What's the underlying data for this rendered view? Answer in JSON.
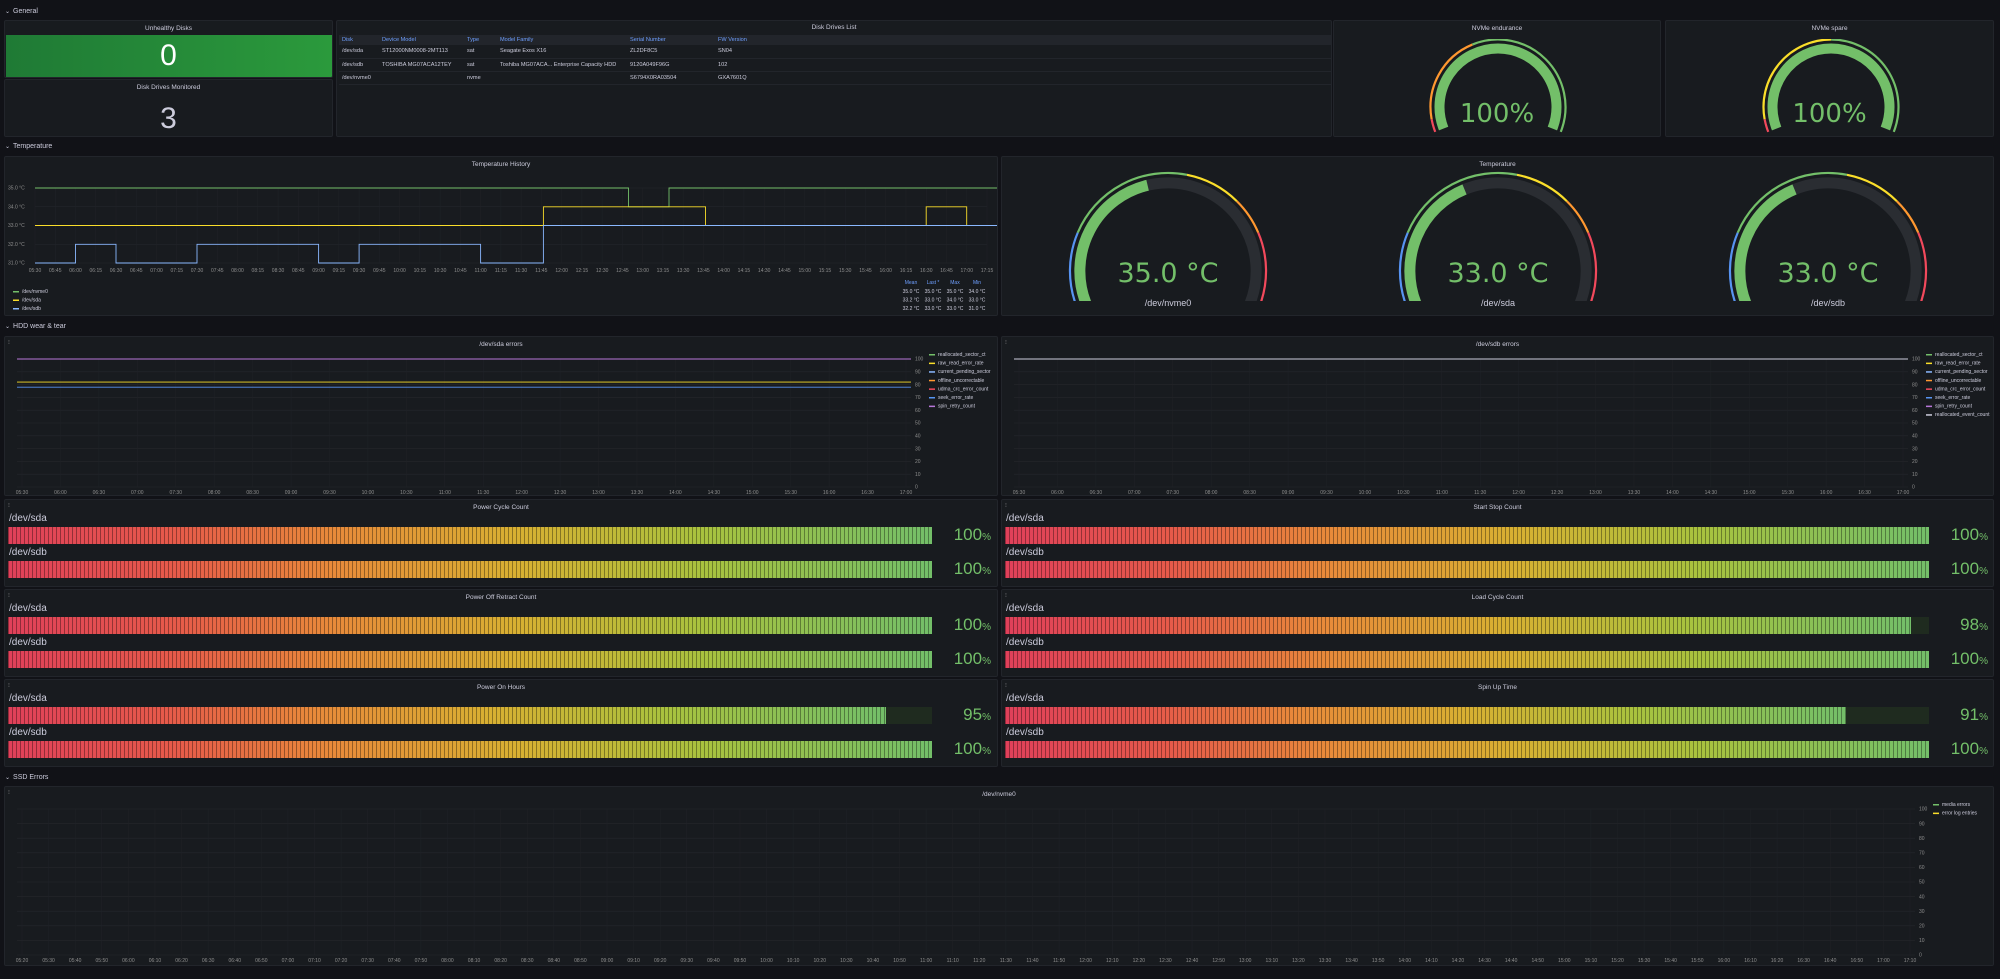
{
  "rows": {
    "general": "General",
    "temperature": "Temperature",
    "hdd": "HDD wear & tear",
    "ssd": "SSD Errors"
  },
  "stats": {
    "unhealthy_title": "Unhealthy Disks",
    "unhealthy_value": "0",
    "monitored_title": "Disk Drives Monitored",
    "monitored_value": "3"
  },
  "disk_table": {
    "title": "Disk Drives List",
    "headers": [
      "Disk",
      "Device Model",
      "Type",
      "Model Family",
      "Serial Number",
      "FW Version"
    ],
    "rows": [
      [
        "/dev/sda",
        "ST12000NM0008-2MT113",
        "sat",
        "Seagate Exos X16",
        "ZL2DF8C5",
        "SN04"
      ],
      [
        "/dev/sdb",
        "TOSHIBA MG07ACA12TEY",
        "sat",
        "Toshiba MG07ACA... Enterprise Capacity HDD",
        "9120A049F96G",
        "102"
      ],
      [
        "/dev/nvme0",
        "",
        "nvme",
        "",
        "S6794X0RA03504",
        "GXA7601Q"
      ]
    ]
  },
  "nvme_gauges": [
    {
      "title": "NVMe endurance",
      "value": "100%",
      "fraction": 1.0
    },
    {
      "title": "NVMe spare",
      "value": "100%",
      "fraction": 1.0
    }
  ],
  "temp_history": {
    "title": "Temperature History",
    "yticks": [
      "35.0 °C",
      "34.0 °C",
      "33.0 °C",
      "32.0 °C",
      "31.0 °C"
    ],
    "xticks": [
      "05:30",
      "05:45",
      "06:00",
      "06:15",
      "06:30",
      "06:45",
      "07:00",
      "07:15",
      "07:30",
      "07:45",
      "08:00",
      "08:15",
      "08:30",
      "08:45",
      "09:00",
      "09:15",
      "09:30",
      "09:45",
      "10:00",
      "10:15",
      "10:30",
      "10:45",
      "11:00",
      "11:15",
      "11:30",
      "11:45",
      "12:00",
      "12:15",
      "12:30",
      "12:45",
      "13:00",
      "13:15",
      "13:30",
      "13:45",
      "14:00",
      "14:15",
      "14:30",
      "14:45",
      "15:00",
      "15:15",
      "15:30",
      "15:45",
      "16:00",
      "16:15",
      "16:30",
      "16:45",
      "17:00",
      "17:15"
    ],
    "legend_headers": [
      "Mean",
      "Last *",
      "Max",
      "Min"
    ],
    "legend": [
      {
        "name": "/dev/nvme0",
        "color": "#73bf69",
        "mean": "35.0 °C",
        "last": "35.0 °C",
        "max": "35.0 °C",
        "min": "34.0 °C"
      },
      {
        "name": "/dev/sda",
        "color": "#fade2a",
        "mean": "33.2 °C",
        "last": "33.0 °C",
        "max": "34.0 °C",
        "min": "33.0 °C"
      },
      {
        "name": "/dev/sdb",
        "color": "#8ab8ff",
        "mean": "32.2 °C",
        "last": "33.0 °C",
        "max": "33.0 °C",
        "min": "31.0 °C"
      }
    ]
  },
  "temperature_gauges": {
    "title": "Temperature",
    "items": [
      {
        "value": "35.0 °C",
        "label": "/dev/nvme0",
        "fraction": 0.44
      },
      {
        "value": "33.0 °C",
        "label": "/dev/sda",
        "fraction": 0.4
      },
      {
        "value": "33.0 °C",
        "label": "/dev/sdb",
        "fraction": 0.4
      }
    ]
  },
  "sda_errors": {
    "title": "/dev/sda errors",
    "yticks": [
      "100",
      "90",
      "80",
      "70",
      "60",
      "50",
      "40",
      "30",
      "20",
      "10",
      "0"
    ],
    "xticks": [
      "05:30",
      "06:00",
      "06:30",
      "07:00",
      "07:30",
      "08:00",
      "08:30",
      "09:00",
      "09:30",
      "10:00",
      "10:30",
      "11:00",
      "11:30",
      "12:00",
      "12:30",
      "13:00",
      "13:30",
      "14:00",
      "14:30",
      "15:00",
      "15:30",
      "16:00",
      "16:30",
      "17:00"
    ],
    "legend": [
      {
        "name": "reallocated_sector_ct",
        "color": "#73bf69"
      },
      {
        "name": "raw_read_error_rate",
        "color": "#fade2a"
      },
      {
        "name": "current_pending_sector",
        "color": "#8ab8ff"
      },
      {
        "name": "offline_uncorrectable",
        "color": "#ff9830"
      },
      {
        "name": "udma_crc_error_count",
        "color": "#f2495c"
      },
      {
        "name": "seek_error_rate",
        "color": "#5794f2"
      },
      {
        "name": "spin_retry_count",
        "color": "#b877d9"
      }
    ]
  },
  "sdb_errors": {
    "title": "/dev/sdb errors",
    "yticks": [
      "100",
      "90",
      "80",
      "70",
      "60",
      "50",
      "40",
      "30",
      "20",
      "10",
      "0"
    ],
    "xticks": [
      "05:30",
      "06:00",
      "06:30",
      "07:00",
      "07:30",
      "08:00",
      "08:30",
      "09:00",
      "09:30",
      "10:00",
      "10:30",
      "11:00",
      "11:30",
      "12:00",
      "12:30",
      "13:00",
      "13:30",
      "14:00",
      "14:30",
      "15:00",
      "15:30",
      "16:00",
      "16:30",
      "17:00"
    ],
    "legend": [
      {
        "name": "reallocated_sector_ct",
        "color": "#73bf69"
      },
      {
        "name": "raw_read_error_rate",
        "color": "#fade2a"
      },
      {
        "name": "current_pending_sector",
        "color": "#8ab8ff"
      },
      {
        "name": "offline_uncorrectable",
        "color": "#ff9830"
      },
      {
        "name": "udma_crc_error_count",
        "color": "#f2495c"
      },
      {
        "name": "seek_error_rate",
        "color": "#5794f2"
      },
      {
        "name": "spin_retry_count",
        "color": "#b877d9"
      },
      {
        "name": "reallocated_event_count",
        "color": "#ccccdc"
      }
    ]
  },
  "bargauges": [
    {
      "title": "Power Cycle Count",
      "bars": [
        {
          "name": "/dev/sda",
          "value": "100",
          "unit": "%",
          "fraction": 1.0
        },
        {
          "name": "/dev/sdb",
          "value": "100",
          "unit": "%",
          "fraction": 1.0
        }
      ]
    },
    {
      "title": "Start Stop Count",
      "bars": [
        {
          "name": "/dev/sda",
          "value": "100",
          "unit": "%",
          "fraction": 1.0
        },
        {
          "name": "/dev/sdb",
          "value": "100",
          "unit": "%",
          "fraction": 1.0
        }
      ]
    },
    {
      "title": "Power Off Retract Count",
      "bars": [
        {
          "name": "/dev/sda",
          "value": "100",
          "unit": "%",
          "fraction": 1.0
        },
        {
          "name": "/dev/sdb",
          "value": "100",
          "unit": "%",
          "fraction": 1.0
        }
      ]
    },
    {
      "title": "Load Cycle Count",
      "bars": [
        {
          "name": "/dev/sda",
          "value": "98",
          "unit": "%",
          "fraction": 0.98
        },
        {
          "name": "/dev/sdb",
          "value": "100",
          "unit": "%",
          "fraction": 1.0
        }
      ]
    },
    {
      "title": "Power On Hours",
      "bars": [
        {
          "name": "/dev/sda",
          "value": "95",
          "unit": "%",
          "fraction": 0.95
        },
        {
          "name": "/dev/sdb",
          "value": "100",
          "unit": "%",
          "fraction": 1.0
        }
      ]
    },
    {
      "title": "Spin Up Time",
      "bars": [
        {
          "name": "/dev/sda",
          "value": "91",
          "unit": "%",
          "fraction": 0.91
        },
        {
          "name": "/dev/sdb",
          "value": "100",
          "unit": "%",
          "fraction": 1.0
        }
      ]
    }
  ],
  "nvme_errors": {
    "title": "/dev/nvme0",
    "yticks": [
      "100",
      "90",
      "80",
      "70",
      "60",
      "50",
      "40",
      "30",
      "20",
      "10",
      "0"
    ],
    "xticks": [
      "05:20",
      "05:30",
      "05:40",
      "05:50",
      "06:00",
      "06:10",
      "06:20",
      "06:30",
      "06:40",
      "06:50",
      "07:00",
      "07:10",
      "07:20",
      "07:30",
      "07:40",
      "07:50",
      "08:00",
      "08:10",
      "08:20",
      "08:30",
      "08:40",
      "08:50",
      "09:00",
      "09:10",
      "09:20",
      "09:30",
      "09:40",
      "09:50",
      "10:00",
      "10:10",
      "10:20",
      "10:30",
      "10:40",
      "10:50",
      "11:00",
      "11:10",
      "11:20",
      "11:30",
      "11:40",
      "11:50",
      "12:00",
      "12:10",
      "12:20",
      "12:30",
      "12:40",
      "12:50",
      "13:00",
      "13:10",
      "13:20",
      "13:30",
      "13:40",
      "13:50",
      "14:00",
      "14:10",
      "14:20",
      "14:30",
      "14:40",
      "14:50",
      "15:00",
      "15:10",
      "15:20",
      "15:30",
      "15:40",
      "15:50",
      "16:00",
      "16:10",
      "16:20",
      "16:30",
      "16:40",
      "16:50",
      "17:00",
      "17:10"
    ],
    "legend": [
      {
        "name": "media errors",
        "color": "#73bf69"
      },
      {
        "name": "error log entries",
        "color": "#fade2a"
      }
    ]
  },
  "chart_data": [
    {
      "type": "line",
      "title": "Temperature History",
      "xlabel": "",
      "ylabel": "",
      "ylim": [
        31,
        35
      ],
      "x": [
        "05:30",
        "06:30",
        "07:30",
        "08:30",
        "09:30",
        "10:30",
        "11:30",
        "12:30",
        "13:00",
        "13:30",
        "14:30",
        "15:30",
        "16:30",
        "16:45",
        "17:00",
        "17:15"
      ],
      "series": [
        {
          "name": "/dev/nvme0",
          "values": [
            35,
            35,
            35,
            35,
            35,
            35,
            35,
            35,
            34,
            35,
            35,
            35,
            35,
            35,
            35,
            35
          ]
        },
        {
          "name": "/dev/sda",
          "values": [
            33,
            33,
            33,
            33,
            33,
            33,
            34,
            34,
            34,
            33,
            33,
            33,
            33,
            34,
            33,
            33
          ]
        },
        {
          "name": "/dev/sdb",
          "values": [
            31,
            32,
            31,
            32,
            32,
            31,
            33,
            33,
            33,
            33,
            33,
            33,
            33,
            33,
            33,
            33
          ]
        }
      ]
    },
    {
      "type": "line",
      "title": "/dev/sda errors",
      "ylim": [
        0,
        100
      ],
      "x": [
        "05:30",
        "17:00"
      ],
      "series": [
        {
          "name": "reallocated_sector_ct",
          "values": [
            100,
            100
          ]
        },
        {
          "name": "raw_read_error_rate",
          "values": [
            82,
            82
          ]
        },
        {
          "name": "seek_error_rate",
          "values": [
            78,
            78
          ]
        },
        {
          "name": "current_pending_sector",
          "values": [
            100,
            100
          ]
        },
        {
          "name": "offline_uncorrectable",
          "values": [
            100,
            100
          ]
        },
        {
          "name": "udma_crc_error_count",
          "values": [
            100,
            100
          ]
        },
        {
          "name": "spin_retry_count",
          "values": [
            100,
            100
          ]
        }
      ]
    },
    {
      "type": "line",
      "title": "/dev/sdb errors",
      "ylim": [
        0,
        100
      ],
      "x": [
        "05:30",
        "17:00"
      ],
      "series": [
        {
          "name": "reallocated_sector_ct",
          "values": [
            100,
            100
          ]
        },
        {
          "name": "raw_read_error_rate",
          "values": [
            100,
            100
          ]
        },
        {
          "name": "current_pending_sector",
          "values": [
            100,
            100
          ]
        },
        {
          "name": "offline_uncorrectable",
          "values": [
            100,
            100
          ]
        },
        {
          "name": "udma_crc_error_count",
          "values": [
            100,
            100
          ]
        },
        {
          "name": "seek_error_rate",
          "values": [
            100,
            100
          ]
        },
        {
          "name": "spin_retry_count",
          "values": [
            100,
            100
          ]
        },
        {
          "name": "reallocated_event_count",
          "values": [
            100,
            100
          ]
        }
      ]
    }
  ]
}
